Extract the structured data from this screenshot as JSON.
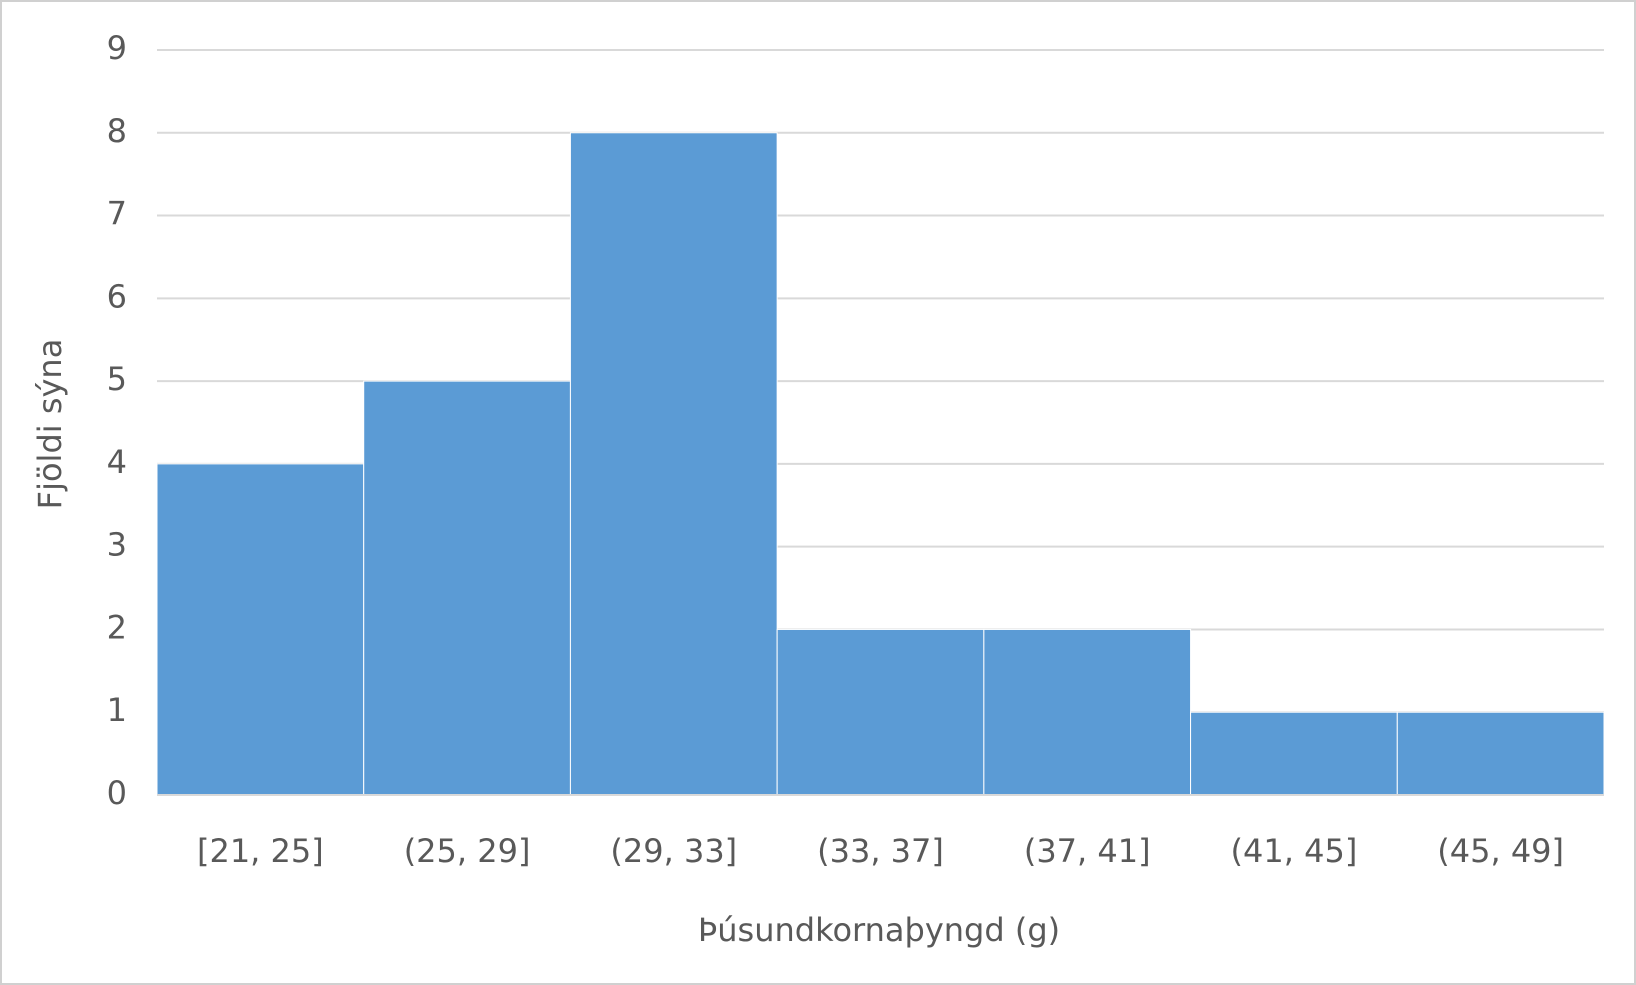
{
  "chart_data": {
    "type": "bar",
    "x_label": "Þúsundkornaþyngd (g)",
    "y_label": "Fjöldi sýna",
    "categories": [
      "[21, 25]",
      "(25, 29]",
      "(29, 33]",
      "(33, 37]",
      "(37, 41]",
      "(41, 45]",
      "(45, 49]"
    ],
    "values": [
      4,
      5,
      8,
      2,
      2,
      1,
      1
    ],
    "color": "#5b9bd5",
    "ylim": [
      0,
      9
    ],
    "yticks": [
      0,
      1,
      2,
      3,
      4,
      5,
      6,
      7,
      8,
      9
    ],
    "grid": true
  }
}
